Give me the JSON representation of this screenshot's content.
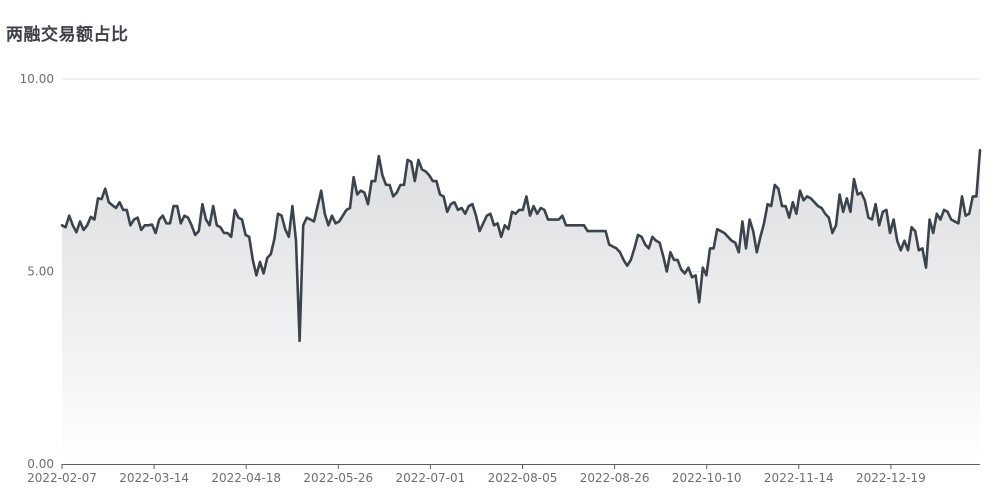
{
  "chart_data": {
    "type": "area",
    "title": "两融交易额占比",
    "ylim": [
      0,
      10
    ],
    "y_ticks": [
      "0.00",
      "5.00",
      "10.00"
    ],
    "x_ticks": [
      "2022-02-07",
      "2022-03-14",
      "2022-04-18",
      "2022-05-26",
      "2022-07-01",
      "2022-08-05",
      "2022-08-26",
      "2022-10-10",
      "2022-11-14",
      "2022-12-19"
    ],
    "grid": "horizontal",
    "colors": {
      "line": "#3b434d",
      "fill_top": "#dcdde0",
      "fill_bottom": "#ffffff",
      "grid": "#e4e5ea",
      "axis": "#5a5f66"
    },
    "series": [
      {
        "values": [
          6.2,
          6.15,
          6.45,
          6.2,
          6.02,
          6.3,
          6.08,
          6.2,
          6.42,
          6.35,
          6.9,
          6.88,
          7.15,
          6.8,
          6.72,
          6.65,
          6.8,
          6.6,
          6.6,
          6.2,
          6.35,
          6.4,
          6.08,
          6.2,
          6.2,
          6.22,
          6.0,
          6.35,
          6.45,
          6.25,
          6.25,
          6.7,
          6.7,
          6.25,
          6.45,
          6.4,
          6.2,
          5.95,
          6.05,
          6.75,
          6.35,
          6.2,
          6.7,
          6.2,
          6.15,
          6.0,
          6.0,
          5.9,
          6.6,
          6.4,
          6.35,
          5.95,
          5.9,
          5.3,
          4.9,
          5.25,
          4.95,
          5.35,
          5.45,
          5.85,
          6.5,
          6.45,
          6.1,
          5.9,
          6.7,
          5.8,
          3.2,
          6.2,
          6.4,
          6.35,
          6.3,
          6.7,
          7.1,
          6.5,
          6.2,
          6.45,
          6.25,
          6.3,
          6.45,
          6.6,
          6.65,
          7.45,
          7.0,
          7.1,
          7.05,
          6.75,
          7.35,
          7.35,
          8.0,
          7.5,
          7.25,
          7.25,
          6.95,
          7.05,
          7.25,
          7.25,
          7.9,
          7.85,
          7.35,
          7.9,
          7.65,
          7.6,
          7.5,
          7.35,
          7.35,
          7.0,
          6.95,
          6.55,
          6.75,
          6.8,
          6.6,
          6.65,
          6.5,
          6.7,
          6.75,
          6.45,
          6.05,
          6.25,
          6.45,
          6.5,
          6.2,
          6.25,
          5.9,
          6.2,
          6.1,
          6.55,
          6.5,
          6.6,
          6.6,
          6.95,
          6.45,
          6.7,
          6.5,
          6.65,
          6.6,
          6.35,
          6.35,
          6.35,
          6.35,
          6.45,
          6.2,
          6.2,
          6.2,
          6.2,
          6.2,
          6.2,
          6.05,
          6.05,
          6.05,
          6.05,
          6.05,
          6.05,
          5.7,
          5.65,
          5.6,
          5.5,
          5.3,
          5.15,
          5.3,
          5.6,
          5.95,
          5.9,
          5.7,
          5.6,
          5.9,
          5.8,
          5.75,
          5.4,
          5.0,
          5.5,
          5.3,
          5.3,
          5.05,
          4.95,
          5.1,
          4.85,
          4.9,
          4.2,
          5.1,
          4.9,
          5.6,
          5.6,
          6.1,
          6.05,
          6.0,
          5.9,
          5.8,
          5.75,
          5.5,
          6.3,
          5.6,
          6.35,
          6.05,
          5.5,
          5.9,
          6.25,
          6.75,
          6.7,
          7.25,
          7.15,
          6.7,
          6.7,
          6.4,
          6.8,
          6.5,
          7.1,
          6.85,
          6.95,
          6.9,
          6.8,
          6.7,
          6.65,
          6.5,
          6.4,
          6.0,
          6.2,
          7.0,
          6.55,
          6.9,
          6.55,
          7.4,
          7.0,
          7.05,
          6.85,
          6.4,
          6.35,
          6.75,
          6.2,
          6.55,
          6.6,
          6.0,
          6.35,
          5.8,
          5.55,
          5.8,
          5.55,
          6.15,
          6.05,
          5.55,
          5.6,
          5.1,
          6.35,
          6.0,
          6.5,
          6.35,
          6.6,
          6.55,
          6.35,
          6.3,
          6.25,
          6.95,
          6.45,
          6.5,
          6.95,
          6.95,
          8.15
        ]
      }
    ]
  }
}
